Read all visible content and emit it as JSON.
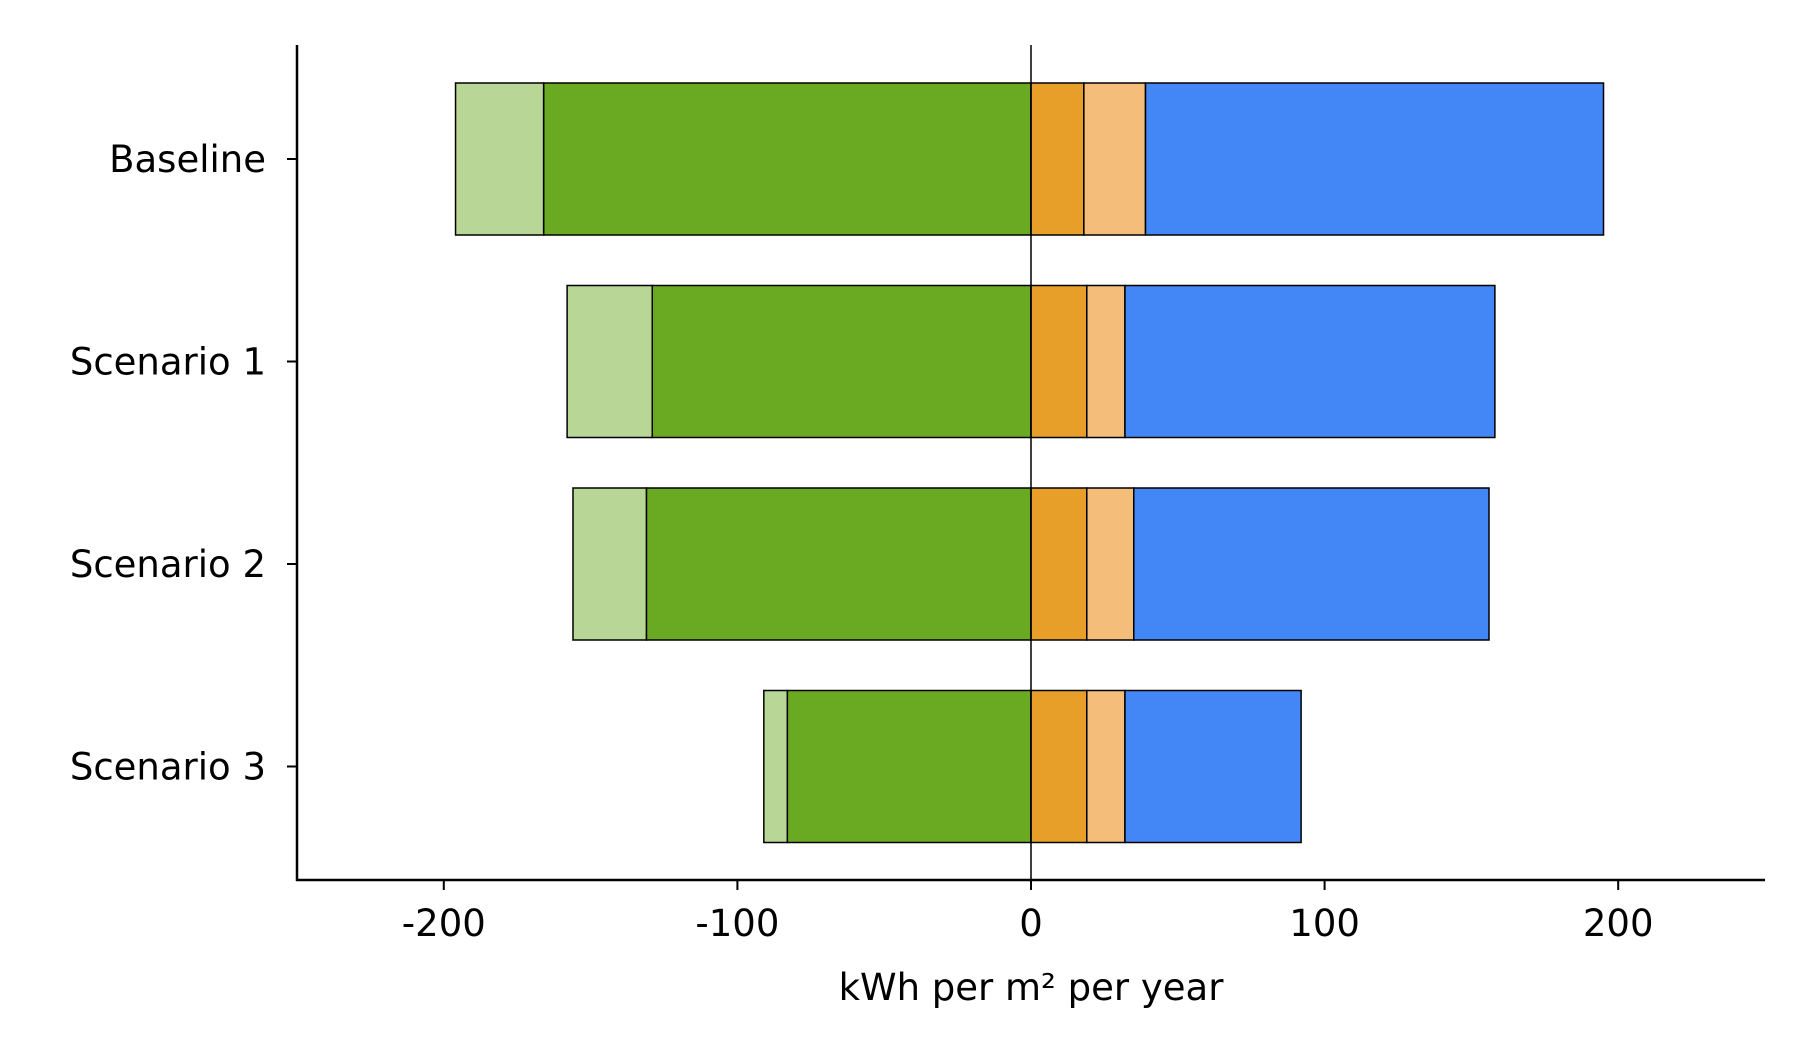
{
  "chart_data": {
    "type": "bar",
    "orientation": "horizontal",
    "stacked": true,
    "diverging": true,
    "title": "",
    "xlabel": "kWh per m² per year",
    "ylabel": "",
    "xlim": [
      -250,
      250
    ],
    "xticks": [
      -200,
      -100,
      0,
      100,
      200
    ],
    "xtick_labels": [
      "-200",
      "-100",
      "0",
      "100",
      "200"
    ],
    "categories": [
      "Baseline",
      "Scenario 1",
      "Scenario 2",
      "Scenario 3"
    ],
    "negative_series": [
      {
        "name": "",
        "color": "#6aaa22",
        "values": [
          166,
          129,
          131,
          83
        ]
      },
      {
        "name": "",
        "color": "#b8d695",
        "values": [
          30,
          29,
          25,
          8
        ]
      }
    ],
    "positive_series": [
      {
        "name": "",
        "color": "#e89f2a",
        "values": [
          18,
          19,
          19,
          19
        ]
      },
      {
        "name": "",
        "color": "#f5bd7a",
        "values": [
          21,
          13,
          16,
          13
        ]
      },
      {
        "name": "",
        "color": "#4287f5",
        "values": [
          156,
          126,
          121,
          60
        ]
      }
    ],
    "grid": false,
    "legend": "none",
    "zero_line": true
  }
}
